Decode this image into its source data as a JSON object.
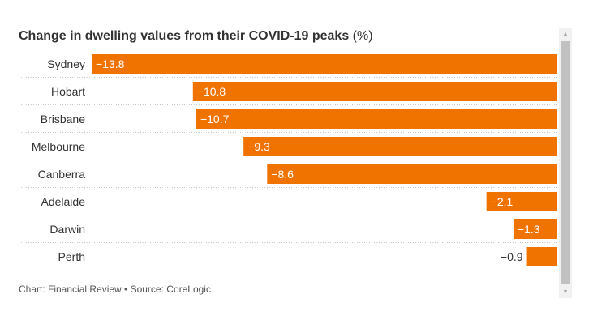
{
  "chart_data": {
    "type": "bar",
    "orientation": "horizontal",
    "title": "Change in dwelling values from their COVID-19 peaks",
    "title_unit": "(%)",
    "categories": [
      "Sydney",
      "Hobart",
      "Brisbane",
      "Melbourne",
      "Canberra",
      "Adelaide",
      "Darwin",
      "Perth"
    ],
    "values": [
      -13.8,
      -10.8,
      -10.7,
      -9.3,
      -8.6,
      -2.1,
      -1.3,
      -0.9
    ],
    "value_labels": [
      "−13.8",
      "−10.8",
      "−10.7",
      "−9.3",
      "−8.6",
      "−2.1",
      "−1.3",
      "−0.9"
    ],
    "xlim": [
      -13.8,
      0
    ],
    "xlabel": "",
    "ylabel": "",
    "grid": "dotted row separators",
    "bar_color": "#f07300"
  },
  "footer": {
    "text": "Chart: Financial Review • Source: CoreLogic"
  },
  "scrollbar": {
    "up_arrow": "▲",
    "down_arrow": "▼"
  }
}
